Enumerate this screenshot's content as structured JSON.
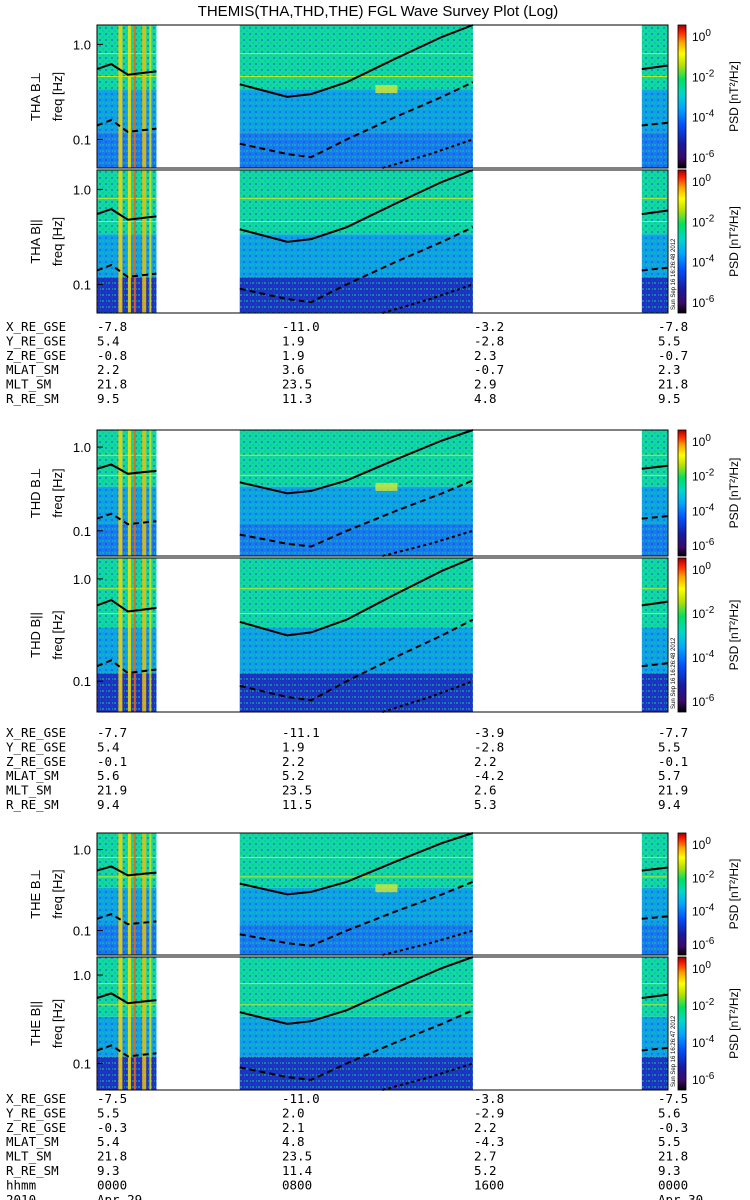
{
  "title": "THEMIS(THA,THD,THE) FGL Wave Survey Plot (Log)",
  "chart_data": {
    "type": "heatmap",
    "title": "THEMIS(THA,THD,THE) FGL Wave Survey Plot (Log)",
    "scale": "log",
    "ylabel_unit": "freq [Hz]",
    "yticks": [
      "1.0",
      "0.1"
    ],
    "yticks_values": [
      1.0,
      0.1
    ],
    "colorbar": {
      "label": "PSD [nT²/Hz]",
      "ticks": [
        "10^0",
        "10^-2",
        "10^-4",
        "10^-6"
      ],
      "colors": [
        "#000000",
        "#3a0a6a",
        "#1a1aa0",
        "#0050ff",
        "#00a8ff",
        "#00d8c8",
        "#00e060",
        "#b8e000",
        "#ffff00",
        "#ffa000",
        "#ff2000",
        "#a00000"
      ]
    },
    "stamps": [
      "Sun Sep 16 16:26:48 2012",
      "Sun Sep 16 16:26:48 2012",
      "Sun Sep 16 16:26:47 2012"
    ],
    "panels": [
      {
        "probe": "THA",
        "component": "B⊥",
        "label": "THA B⊥"
      },
      {
        "probe": "THA",
        "component": "B||",
        "label": "THA B||"
      },
      {
        "probe": "THD",
        "component": "B⊥",
        "label": "THD B⊥"
      },
      {
        "probe": "THD",
        "component": "B||",
        "label": "THD B||"
      },
      {
        "probe": "THE",
        "component": "B⊥",
        "label": "THE B⊥"
      },
      {
        "probe": "THE",
        "component": "B||",
        "label": "THE B||"
      }
    ],
    "ephemeris": [
      {
        "probe": "THA",
        "rows": [
          {
            "label": "X_RE_GSE",
            "values": [
              "-7.8",
              "-11.0",
              "-3.2",
              "-7.8"
            ]
          },
          {
            "label": "Y_RE_GSE",
            "values": [
              "5.4",
              "1.9",
              "-2.8",
              "5.5"
            ]
          },
          {
            "label": "Z_RE_GSE",
            "values": [
              "-0.8",
              "1.9",
              "2.3",
              "-0.7"
            ]
          },
          {
            "label": "MLAT_SM",
            "values": [
              "2.2",
              "3.6",
              "-0.7",
              "2.3"
            ]
          },
          {
            "label": "MLT_SM",
            "values": [
              "21.8",
              "23.5",
              "2.9",
              "21.8"
            ]
          },
          {
            "label": "R_RE_SM",
            "values": [
              "9.5",
              "11.3",
              "4.8",
              "9.5"
            ]
          }
        ]
      },
      {
        "probe": "THD",
        "rows": [
          {
            "label": "X_RE_GSE",
            "values": [
              "-7.7",
              "-11.1",
              "-3.9",
              "-7.7"
            ]
          },
          {
            "label": "Y_RE_GSE",
            "values": [
              "5.4",
              "1.9",
              "-2.8",
              "5.5"
            ]
          },
          {
            "label": "Z_RE_GSE",
            "values": [
              "-0.1",
              "2.2",
              "2.2",
              "-0.1"
            ]
          },
          {
            "label": "MLAT_SM",
            "values": [
              "5.6",
              "5.2",
              "-4.2",
              "5.7"
            ]
          },
          {
            "label": "MLT_SM",
            "values": [
              "21.9",
              "23.5",
              "2.6",
              "21.9"
            ]
          },
          {
            "label": "R_RE_SM",
            "values": [
              "9.4",
              "11.5",
              "5.3",
              "9.4"
            ]
          }
        ]
      },
      {
        "probe": "THE",
        "rows": [
          {
            "label": "X_RE_GSE",
            "values": [
              "-7.5",
              "-11.0",
              "-3.8",
              "-7.5"
            ]
          },
          {
            "label": "Y_RE_GSE",
            "values": [
              "5.5",
              "2.0",
              "-2.9",
              "5.6"
            ]
          },
          {
            "label": "Z_RE_GSE",
            "values": [
              "-0.3",
              "2.1",
              "2.2",
              "-0.3"
            ]
          },
          {
            "label": "MLAT_SM",
            "values": [
              "5.4",
              "4.8",
              "-4.3",
              "5.5"
            ]
          },
          {
            "label": "MLT_SM",
            "values": [
              "21.8",
              "23.5",
              "2.7",
              "21.8"
            ]
          },
          {
            "label": "R_RE_SM",
            "values": [
              "9.3",
              "11.4",
              "5.2",
              "9.3"
            ]
          }
        ]
      }
    ],
    "time_axis": {
      "rows": [
        {
          "label": "hhmm",
          "values": [
            "0000",
            "0800",
            "1600",
            "0000"
          ]
        },
        {
          "label": "2010",
          "values": [
            "Apr 29",
            "",
            "",
            "Apr 30"
          ]
        }
      ]
    },
    "data_coverage_hours": [
      [
        0,
        2.5
      ],
      [
        6.0,
        15.8
      ],
      [
        22.9,
        24
      ]
    ],
    "curves": {
      "solid_Hz_at_hours": [
        [
          0,
          0.55
        ],
        [
          0.6,
          0.62
        ],
        [
          1.3,
          0.48
        ],
        [
          1.9,
          0.5
        ],
        [
          2.5,
          0.52
        ],
        [
          6.0,
          0.38
        ],
        [
          8.0,
          0.28
        ],
        [
          9.0,
          0.3
        ],
        [
          10.5,
          0.4
        ],
        [
          12.5,
          0.7
        ],
        [
          14.5,
          1.2
        ],
        [
          15.8,
          1.8
        ],
        [
          22.9,
          0.55
        ],
        [
          24,
          0.6
        ]
      ],
      "dashed_Hz_at_hours": [
        [
          0,
          0.14
        ],
        [
          0.6,
          0.16
        ],
        [
          1.3,
          0.12
        ],
        [
          2.5,
          0.13
        ],
        [
          6.0,
          0.09
        ],
        [
          8.0,
          0.07
        ],
        [
          9.0,
          0.065
        ],
        [
          10.5,
          0.1
        ],
        [
          12.5,
          0.17
        ],
        [
          14.5,
          0.28
        ],
        [
          15.8,
          0.4
        ],
        [
          22.9,
          0.14
        ],
        [
          24,
          0.15
        ]
      ],
      "dotted_Hz_at_hours": [
        [
          12.0,
          0.05
        ],
        [
          14.0,
          0.07
        ],
        [
          15.8,
          0.1
        ]
      ]
    }
  }
}
